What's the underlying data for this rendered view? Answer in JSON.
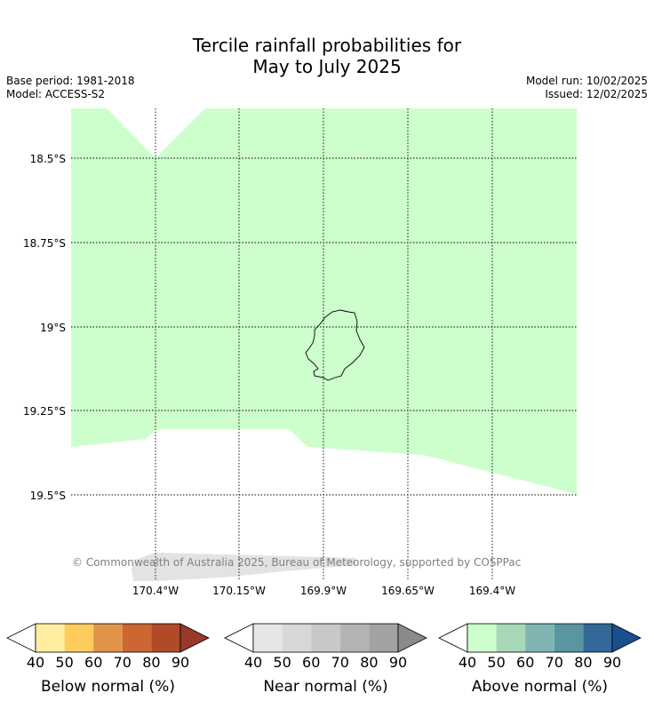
{
  "title": {
    "line1": "Tercile rainfall probabilities for",
    "line2": "May to July 2025"
  },
  "info_left": {
    "base_period": "Base period: 1981-2018",
    "model": "Model: ACCESS-S2"
  },
  "info_right": {
    "model_run": "Model run: 10/02/2025",
    "issued": "Issued: 12/02/2025"
  },
  "map": {
    "latitude_labels": [
      "18.5°S",
      "18.75°S",
      "19°S",
      "19.25°S",
      "19.5°S"
    ],
    "longitude_labels": [
      "170.4°W",
      "170.15°W",
      "169.9°W",
      "169.65°W",
      "169.4°W"
    ],
    "island_name": "",
    "copyright": "© Commonwealth of Australia 2025, Bureau of Meteorology, supported by COSPPac",
    "region_category": "Above normal",
    "region_probability_bin": "40-50",
    "colors": {
      "above_40_50": "#ccffcc",
      "land_mask": "#e0e0e0",
      "grid": "#000000"
    }
  },
  "colorbars": [
    {
      "title": "Below normal (%)",
      "ticks": [
        "40",
        "50",
        "60",
        "70",
        "80",
        "90"
      ],
      "colors": [
        "#ffeda0",
        "#fecc5c",
        "#e0944a",
        "#cc6633",
        "#b04a28"
      ],
      "over_color": "#98392a"
    },
    {
      "title": "Near normal (%)",
      "ticks": [
        "40",
        "50",
        "60",
        "70",
        "80",
        "90"
      ],
      "colors": [
        "#e6e6e6",
        "#d8d8d8",
        "#c8c8c8",
        "#b4b4b4",
        "#a2a2a2"
      ],
      "over_color": "#8a8a8a"
    },
    {
      "title": "Above normal (%)",
      "ticks": [
        "40",
        "50",
        "60",
        "70",
        "80",
        "90"
      ],
      "colors": [
        "#ccffcc",
        "#a8d8b8",
        "#80b4b0",
        "#5a96a2",
        "#346898"
      ],
      "over_color": "#1a5090"
    }
  ]
}
